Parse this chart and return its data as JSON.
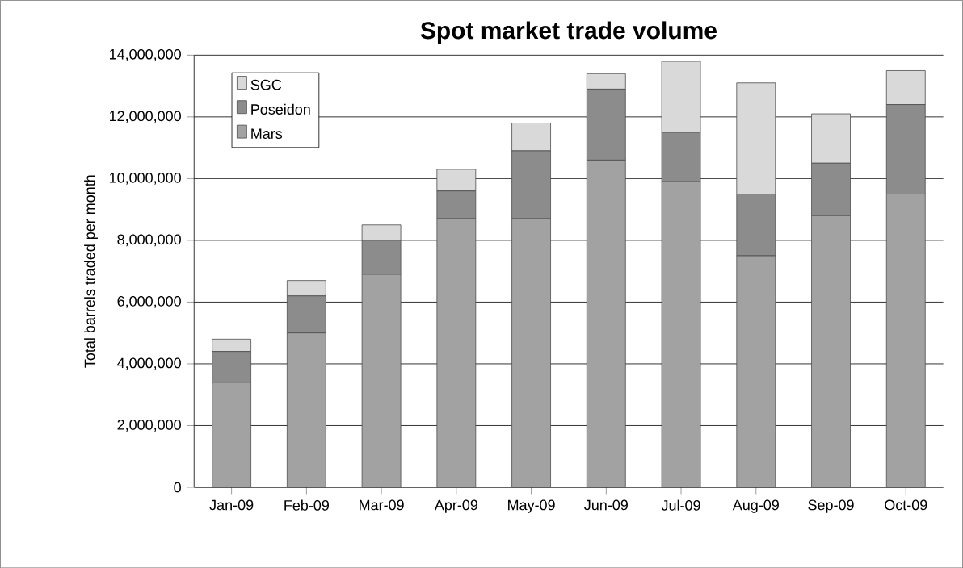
{
  "chart_data": {
    "type": "bar",
    "stacked": true,
    "title": "Spot market trade volume",
    "ylabel": "Total barrels traded per month",
    "categories": [
      "Jan-09",
      "Feb-09",
      "Mar-09",
      "Apr-09",
      "May-09",
      "Jun-09",
      "Jul-09",
      "Aug-09",
      "Sep-09",
      "Oct-09"
    ],
    "series": [
      {
        "name": "Mars",
        "color": "#a2a2a2",
        "values": [
          3400000,
          5000000,
          6900000,
          8700000,
          8700000,
          10600000,
          9900000,
          7500000,
          8800000,
          9500000
        ]
      },
      {
        "name": "Poseidon",
        "color": "#8c8c8c",
        "values": [
          1000000,
          1200000,
          1100000,
          900000,
          2200000,
          2300000,
          1600000,
          2000000,
          1700000,
          2900000
        ]
      },
      {
        "name": "SGC",
        "color": "#d9d9d9",
        "values": [
          400000,
          500000,
          500000,
          700000,
          900000,
          500000,
          2300000,
          3600000,
          1600000,
          1100000
        ]
      }
    ],
    "ylim": [
      0,
      14000000
    ],
    "yticks": [
      0,
      {
        "value": 2000000,
        "label": "2,000,000"
      },
      {
        "value": 4000000,
        "label": "4,000,000"
      },
      {
        "value": 6000000,
        "label": "6,000,000"
      },
      {
        "value": 8000000,
        "label": "8,000,000"
      },
      {
        "value": 10000000,
        "label": "10,000,000"
      },
      {
        "value": 12000000,
        "label": "12,000,000"
      },
      {
        "value": 14000000,
        "label": "14,000,000"
      }
    ],
    "grid": "y",
    "legend": "top left"
  }
}
